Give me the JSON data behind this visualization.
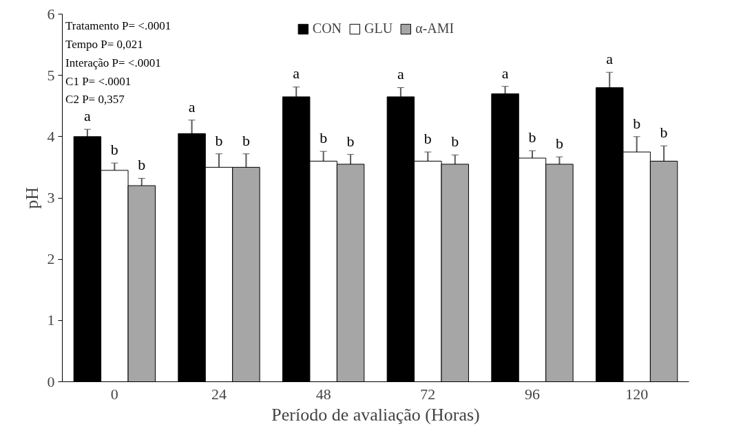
{
  "chart_data": {
    "type": "bar",
    "xlabel": "Período de avaliação (Horas)",
    "ylabel": "pH",
    "categories": [
      "0",
      "24",
      "48",
      "72",
      "96",
      "120"
    ],
    "series": [
      {
        "name": "CON",
        "color": "#000000",
        "values": [
          4.0,
          4.05,
          4.65,
          4.65,
          4.7,
          4.8
        ],
        "errors": [
          0.12,
          0.22,
          0.16,
          0.15,
          0.12,
          0.25
        ],
        "value_labels": [
          "a",
          "a",
          "a",
          "a",
          "a",
          "a"
        ]
      },
      {
        "name": "GLU",
        "color": "#ffffff",
        "values": [
          3.45,
          3.5,
          3.6,
          3.6,
          3.65,
          3.75
        ],
        "errors": [
          0.12,
          0.22,
          0.16,
          0.15,
          0.12,
          0.25
        ],
        "value_labels": [
          "b",
          "b",
          "b",
          "b",
          "b",
          "b"
        ]
      },
      {
        "name": "α-AMI",
        "color": "#a6a6a6",
        "values": [
          3.2,
          3.5,
          3.55,
          3.55,
          3.55,
          3.6
        ],
        "errors": [
          0.12,
          0.22,
          0.16,
          0.15,
          0.12,
          0.25
        ],
        "value_labels": [
          "b",
          "b",
          "b",
          "b",
          "b",
          "b"
        ]
      }
    ],
    "ylim": [
      0,
      6
    ],
    "yticks": [
      0,
      1,
      2,
      3,
      4,
      5,
      6
    ],
    "grid": false,
    "legend": "top",
    "annotations": [
      "Tratamento P= <.0001",
      "Tempo P= 0,021",
      "Interação P= <.0001",
      "C1 P= <.0001",
      "C2 P= 0,357"
    ]
  }
}
